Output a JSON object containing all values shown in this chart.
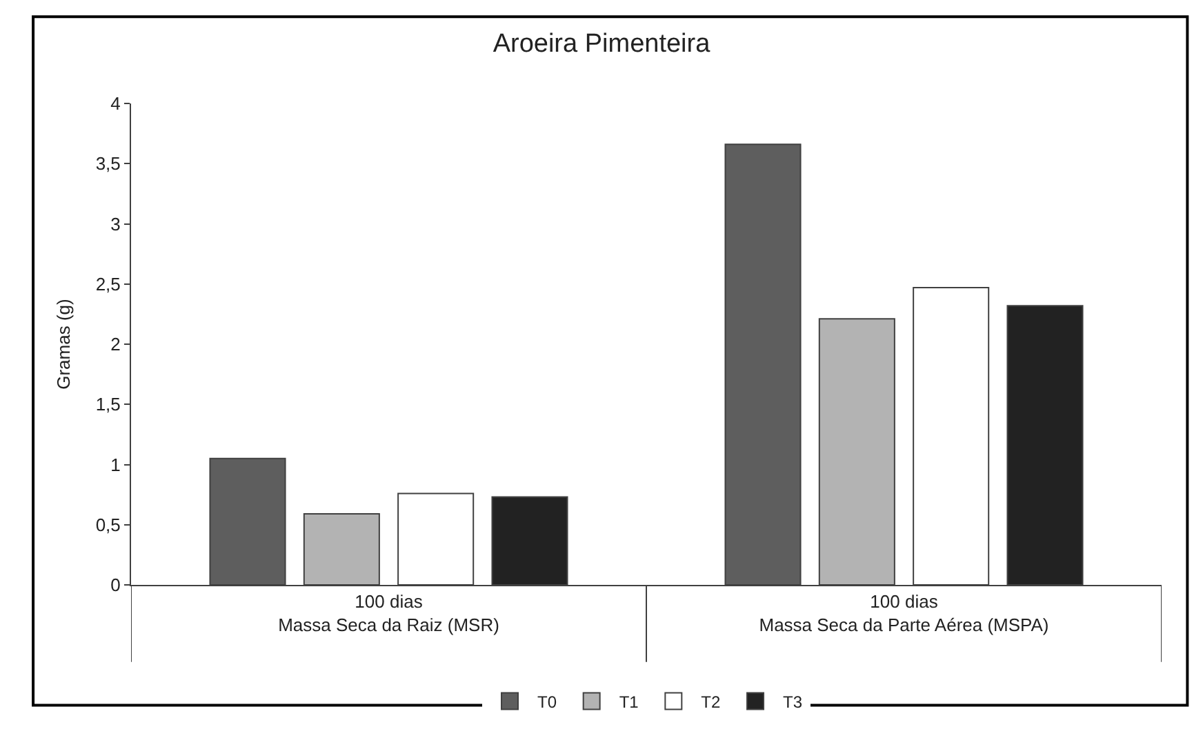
{
  "chart_data": {
    "type": "bar",
    "title": "Aroeira Pimenteira",
    "ylabel": "Gramas (g)",
    "categories": [
      "100 dias\nMassa Seca da Raiz (MSR)",
      "100 dias\nMassa Seca da Parte Aérea (MSPA)"
    ],
    "series": [
      {
        "name": "T0",
        "color": "#5e5e5e",
        "values": [
          1.05,
          3.66
        ]
      },
      {
        "name": "T1",
        "color": "#b3b3b3",
        "values": [
          0.59,
          2.21
        ]
      },
      {
        "name": "T2",
        "color": "#ffffff",
        "values": [
          0.76,
          2.47
        ]
      },
      {
        "name": "T3",
        "color": "#222222",
        "values": [
          0.73,
          2.32
        ]
      }
    ],
    "ylim": [
      0,
      4
    ],
    "yticks": [
      0,
      {
        "value": 0.5,
        "label": "0,5"
      },
      1,
      {
        "value": 1.5,
        "label": "1,5"
      },
      2,
      {
        "value": 2.5,
        "label": "2,5"
      },
      3,
      {
        "value": 3.5,
        "label": "3,5"
      },
      4
    ],
    "grid": false,
    "legend": "bottom"
  }
}
